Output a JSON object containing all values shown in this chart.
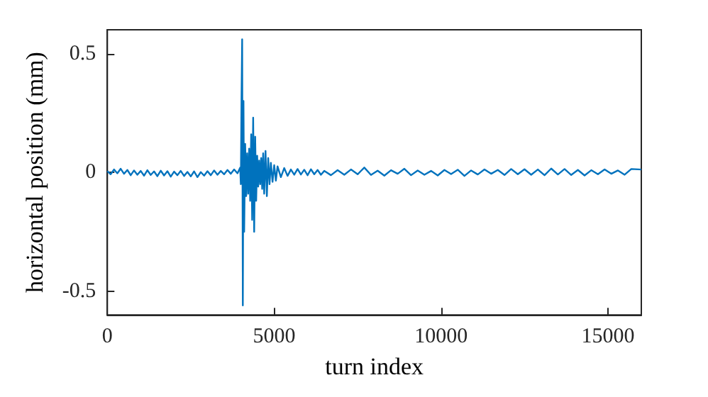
{
  "chart_data": {
    "type": "line",
    "xlabel": "turn index",
    "ylabel": "horizontal position (mm)",
    "x": [
      0,
      100,
      200,
      300,
      400,
      500,
      600,
      700,
      800,
      900,
      1000,
      1100,
      1200,
      1300,
      1400,
      1500,
      1600,
      1700,
      1800,
      1900,
      2000,
      2100,
      2200,
      2300,
      2400,
      2500,
      2600,
      2700,
      2800,
      2900,
      3000,
      3100,
      3200,
      3300,
      3400,
      3500,
      3600,
      3700,
      3800,
      3900,
      3980,
      4000,
      4020,
      4040,
      4060,
      4080,
      4100,
      4130,
      4160,
      4190,
      4220,
      4250,
      4280,
      4310,
      4340,
      4370,
      4400,
      4430,
      4460,
      4490,
      4520,
      4550,
      4580,
      4610,
      4640,
      4670,
      4700,
      4740,
      4780,
      4820,
      4860,
      4900,
      4950,
      5000,
      5050,
      5100,
      5200,
      5300,
      5400,
      5500,
      5600,
      5700,
      5800,
      5900,
      6000,
      6100,
      6200,
      6300,
      6400,
      6500,
      6700,
      6900,
      7100,
      7300,
      7500,
      7700,
      7900,
      8100,
      8300,
      8500,
      8700,
      8900,
      9100,
      9300,
      9500,
      9700,
      9900,
      10100,
      10300,
      10500,
      10700,
      10900,
      11100,
      11300,
      11500,
      11700,
      11900,
      12100,
      12300,
      12500,
      12700,
      12900,
      13100,
      13300,
      13500,
      13700,
      13900,
      14100,
      14300,
      14500,
      14700,
      14900,
      15100,
      15300,
      15500,
      15700,
      16000
    ],
    "series": [
      {
        "color": "#0072bd",
        "values": [
          0.005,
          -0.008,
          0.012,
          -0.004,
          0.015,
          -0.006,
          0.01,
          -0.012,
          0.008,
          -0.01,
          0.006,
          -0.014,
          0.009,
          -0.011,
          0.004,
          -0.016,
          0.007,
          -0.013,
          0.005,
          -0.018,
          0.003,
          -0.012,
          0.006,
          -0.015,
          0.002,
          -0.017,
          0.004,
          -0.02,
          0.001,
          -0.014,
          0.005,
          -0.012,
          0.008,
          -0.01,
          0.006,
          -0.008,
          0.01,
          -0.006,
          0.012,
          -0.004,
          0.02,
          -0.05,
          0.3,
          0.56,
          -0.56,
          0.3,
          -0.25,
          0.12,
          -0.1,
          0.08,
          -0.09,
          0.1,
          -0.12,
          0.16,
          -0.2,
          0.23,
          -0.25,
          0.15,
          -0.12,
          0.07,
          -0.06,
          0.05,
          -0.05,
          0.06,
          -0.07,
          0.08,
          -0.09,
          0.09,
          -0.1,
          0.06,
          -0.05,
          0.04,
          -0.04,
          0.03,
          -0.035,
          0.025,
          -0.02,
          0.018,
          -0.015,
          0.012,
          -0.01,
          0.014,
          -0.009,
          0.011,
          -0.012,
          0.013,
          -0.008,
          0.01,
          -0.01,
          0.006,
          -0.012,
          0.009,
          -0.01,
          0.012,
          -0.008,
          0.02,
          -0.011,
          0.007,
          -0.014,
          0.009,
          -0.006,
          0.015,
          -0.012,
          0.008,
          -0.01,
          0.006,
          -0.013,
          0.01,
          -0.007,
          0.011,
          -0.015,
          0.008,
          -0.009,
          0.012,
          -0.006,
          0.01,
          -0.011,
          0.014,
          -0.008,
          0.013,
          -0.01,
          0.012,
          -0.012,
          0.016,
          -0.009,
          0.014,
          -0.011,
          0.01,
          -0.013,
          0.009,
          -0.008,
          0.012,
          -0.006,
          0.008,
          -0.01,
          0.014,
          0.012
        ]
      }
    ],
    "xlim": [
      0,
      16000
    ],
    "xticks": [
      0,
      5000,
      10000,
      15000
    ],
    "ylim": [
      -0.6,
      0.6
    ],
    "yticks": [
      -0.5,
      0,
      0.5
    ],
    "grid": false,
    "marker": "none",
    "line_style": "solid"
  }
}
